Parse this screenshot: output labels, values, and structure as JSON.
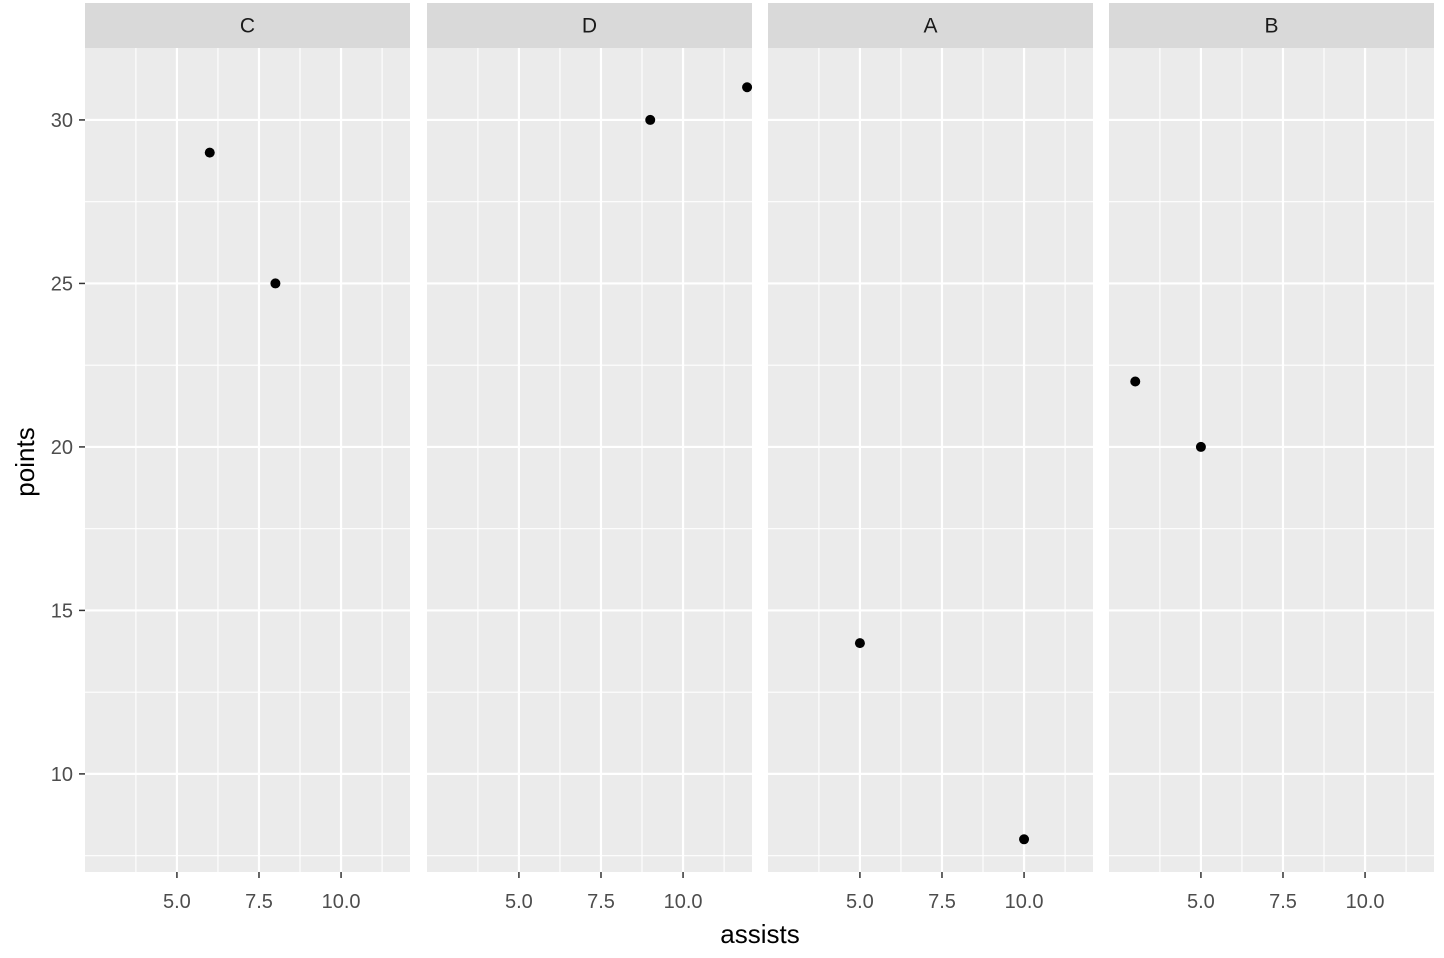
{
  "chart_data": {
    "type": "scatter",
    "facet_layout": "facet_wrap, 1 row",
    "xlabel": "assists",
    "ylabel": "points",
    "x_ticks": [
      5.0,
      7.5,
      10.0
    ],
    "x_tick_labels": [
      "5.0",
      "7.5",
      "10.0"
    ],
    "y_ticks": [
      10,
      15,
      20,
      25,
      30
    ],
    "y_tick_labels": [
      "10",
      "15",
      "20",
      "25",
      "30"
    ],
    "xlim": [
      2.2,
      12.1
    ],
    "ylim": [
      7.0,
      32.2
    ],
    "grid": true,
    "panel_background": "#ebebeb",
    "strip_background": "#d9d9d9",
    "point_color": "#000000",
    "facets": [
      {
        "label": "C",
        "points": [
          {
            "x": 6,
            "y": 29
          },
          {
            "x": 8,
            "y": 25
          }
        ]
      },
      {
        "label": "D",
        "points": [
          {
            "x": 9,
            "y": 30
          },
          {
            "x": 11.95,
            "y": 31
          }
        ]
      },
      {
        "label": "A",
        "points": [
          {
            "x": 5,
            "y": 14
          },
          {
            "x": 10,
            "y": 8
          }
        ]
      },
      {
        "label": "B",
        "points": [
          {
            "x": 3,
            "y": 22
          },
          {
            "x": 5,
            "y": 20
          }
        ]
      }
    ]
  }
}
